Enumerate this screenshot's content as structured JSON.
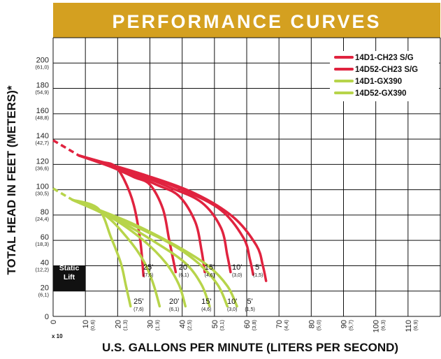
{
  "chart_data": {
    "type": "line",
    "title": "PERFORMANCE CURVES",
    "xlabel": "U.S. GALLONS PER MINUTE (LITERS PER SECOND)",
    "ylabel": "TOTAL HEAD IN FEET (METERS)*",
    "x_multiplier_label": "x 10",
    "xlim": [
      0,
      120
    ],
    "ylim": [
      0,
      220
    ],
    "x_ticks": [
      {
        "value": 0,
        "label": "0",
        "sub": ""
      },
      {
        "value": 10,
        "label": "10",
        "sub": "(0,6)"
      },
      {
        "value": 20,
        "label": "20",
        "sub": "(1,3)"
      },
      {
        "value": 30,
        "label": "30",
        "sub": "(1,9)"
      },
      {
        "value": 40,
        "label": "40",
        "sub": "(2,5)"
      },
      {
        "value": 50,
        "label": "50",
        "sub": "(3,1)"
      },
      {
        "value": 60,
        "label": "60",
        "sub": "(3,8)"
      },
      {
        "value": 70,
        "label": "70",
        "sub": "(4,4)"
      },
      {
        "value": 80,
        "label": "80",
        "sub": "(5,0)"
      },
      {
        "value": 90,
        "label": "90",
        "sub": "(5,7)"
      },
      {
        "value": 100,
        "label": "100",
        "sub": "(6,3)"
      },
      {
        "value": 110,
        "label": "110",
        "sub": "(6,9)"
      }
    ],
    "y_ticks": [
      {
        "value": 0,
        "label": "0",
        "sub": ""
      },
      {
        "value": 20,
        "label": "20",
        "sub": "(6,1)"
      },
      {
        "value": 40,
        "label": "40",
        "sub": "(12,2)"
      },
      {
        "value": 60,
        "label": "60",
        "sub": "(18,3)"
      },
      {
        "value": 80,
        "label": "80",
        "sub": "(24,4)"
      },
      {
        "value": 100,
        "label": "100",
        "sub": "(30,5)"
      },
      {
        "value": 120,
        "label": "120",
        "sub": "(36,6)"
      },
      {
        "value": 140,
        "label": "140",
        "sub": "(42,7)"
      },
      {
        "value": 160,
        "label": "160",
        "sub": "(48,8)"
      },
      {
        "value": 180,
        "label": "180",
        "sub": "(54,9)"
      },
      {
        "value": 200,
        "label": "200",
        "sub": "(61,0)"
      }
    ],
    "grid": true,
    "legend_position": "top-right",
    "static_lift_label": [
      "Static",
      "Lift"
    ],
    "static_lift_range": [
      20,
      40
    ],
    "colors": {
      "red": "#e0233f",
      "green": "#b7d44a",
      "banner_bg": "#d4a020",
      "banner_text": "#ffffff",
      "black": "#111111"
    },
    "legend": [
      {
        "name": "14D1-CH23 S/G",
        "color": "#e0233f"
      },
      {
        "name": "14D52-CH23 S/G",
        "color": "#e0233f"
      },
      {
        "name": "14D1-GX390",
        "color": "#b7d44a"
      },
      {
        "name": "14D52-GX390",
        "color": "#b7d44a"
      }
    ],
    "dashed_segments": [
      {
        "color": "#e0233f",
        "x": [
          0,
          8
        ],
        "y": [
          139,
          127
        ]
      },
      {
        "color": "#b7d44a",
        "x": [
          0,
          6
        ],
        "y": [
          101,
          92
        ]
      }
    ],
    "series": [
      {
        "color": "#e0233f",
        "x": [
          8,
          15,
          19,
          22,
          25,
          27,
          28
        ],
        "y": [
          127,
          122,
          119,
          108,
          88,
          60,
          32
        ]
      },
      {
        "color": "#e0233f",
        "x": [
          8,
          18,
          25,
          30,
          34,
          36,
          38
        ],
        "y": [
          127,
          118,
          110,
          104,
          85,
          60,
          35
        ]
      },
      {
        "color": "#e0233f",
        "x": [
          8,
          20,
          32,
          39,
          44,
          46,
          47
        ],
        "y": [
          127,
          117,
          104,
          95,
          75,
          52,
          35
        ]
      },
      {
        "color": "#e0233f",
        "x": [
          8,
          22,
          36,
          46,
          52,
          54,
          55
        ],
        "y": [
          127,
          116,
          102,
          90,
          70,
          48,
          35
        ]
      },
      {
        "color": "#e0233f",
        "x": [
          8,
          25,
          40,
          52,
          59,
          61,
          62
        ],
        "y": [
          127,
          114,
          100,
          84,
          62,
          45,
          33
        ]
      },
      {
        "color": "#e0233f",
        "x": [
          8,
          28,
          44,
          56,
          63,
          65,
          66
        ],
        "y": [
          127,
          112,
          97,
          78,
          56,
          40,
          28
        ]
      },
      {
        "color": "#b7d44a",
        "x": [
          6,
          14,
          18,
          21,
          22.5,
          24
        ],
        "y": [
          92,
          85,
          62,
          42,
          25,
          8
        ]
      },
      {
        "color": "#b7d44a",
        "x": [
          6,
          16,
          23,
          28,
          31,
          33
        ],
        "y": [
          92,
          80,
          62,
          44,
          26,
          8
        ]
      },
      {
        "color": "#b7d44a",
        "x": [
          6,
          18,
          28,
          35,
          39,
          41
        ],
        "y": [
          92,
          78,
          60,
          42,
          25,
          8
        ]
      },
      {
        "color": "#b7d44a",
        "x": [
          6,
          20,
          32,
          41,
          46,
          48.5
        ],
        "y": [
          92,
          76,
          58,
          42,
          25,
          8
        ]
      },
      {
        "color": "#b7d44a",
        "x": [
          6,
          22,
          36,
          45,
          51,
          54
        ],
        "y": [
          92,
          75,
          58,
          42,
          25,
          8
        ]
      },
      {
        "color": "#b7d44a",
        "x": [
          6,
          24,
          38,
          48,
          54,
          57
        ],
        "y": [
          92,
          74,
          56,
          40,
          24,
          8
        ]
      }
    ],
    "curve_labels": [
      {
        "x": 29.5,
        "y": 37,
        "text": "25'",
        "sub": "(7,6)"
      },
      {
        "x": 40.5,
        "y": 37,
        "text": "20'",
        "sub": "(6,1)"
      },
      {
        "x": 48.5,
        "y": 37,
        "text": "15'",
        "sub": "(4,6)"
      },
      {
        "x": 57,
        "y": 37,
        "text": "10'",
        "sub": "(3,0)"
      },
      {
        "x": 63.5,
        "y": 37,
        "text": "5'",
        "sub": "(1,5)"
      },
      {
        "x": 26.5,
        "y": 10,
        "text": "25'",
        "sub": "(7,6)"
      },
      {
        "x": 37.5,
        "y": 10,
        "text": "20'",
        "sub": "(6,1)"
      },
      {
        "x": 47.5,
        "y": 10,
        "text": "15'",
        "sub": "(4,6)"
      },
      {
        "x": 55.5,
        "y": 10,
        "text": "10'",
        "sub": "(3,0)"
      },
      {
        "x": 61,
        "y": 10,
        "text": "5'",
        "sub": "(1,5)"
      }
    ]
  }
}
